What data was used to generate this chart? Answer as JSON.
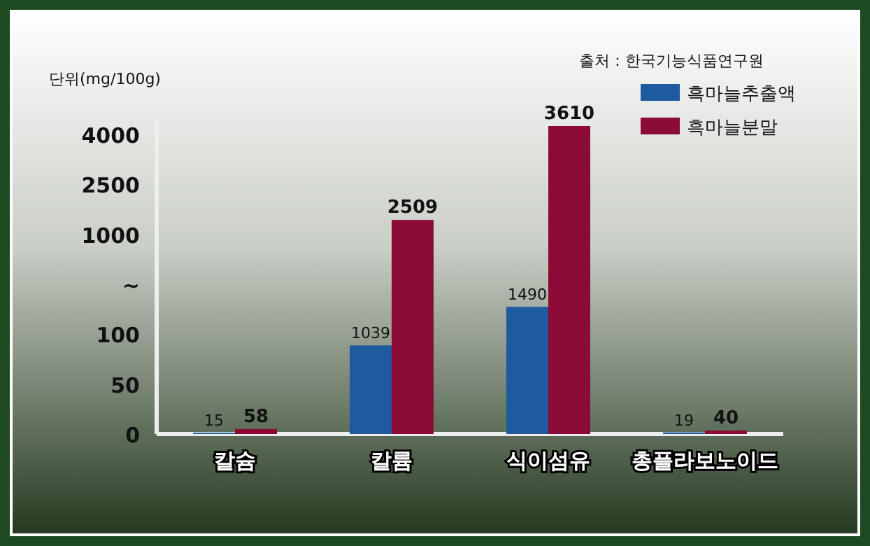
{
  "chart_data": {
    "type": "bar",
    "ylabel": "단위(mg/100g)",
    "categories": [
      "칼슘",
      "칼륨",
      "식이섬유",
      "총플라보노이드"
    ],
    "series": [
      {
        "name": "흑마늘추출액",
        "color": "#1f5a9e",
        "values": [
          15,
          1039,
          1490,
          19
        ]
      },
      {
        "name": "흑마늘분말",
        "color": "#8c0a36",
        "values": [
          58,
          2509,
          3610,
          40
        ]
      }
    ],
    "data_labels": true,
    "legend": "top right",
    "annotations": [
      "출처 : 한국기능식품연구원",
      "4000",
      "2500",
      "1000",
      "~",
      "100",
      "50",
      "0"
    ]
  }
}
